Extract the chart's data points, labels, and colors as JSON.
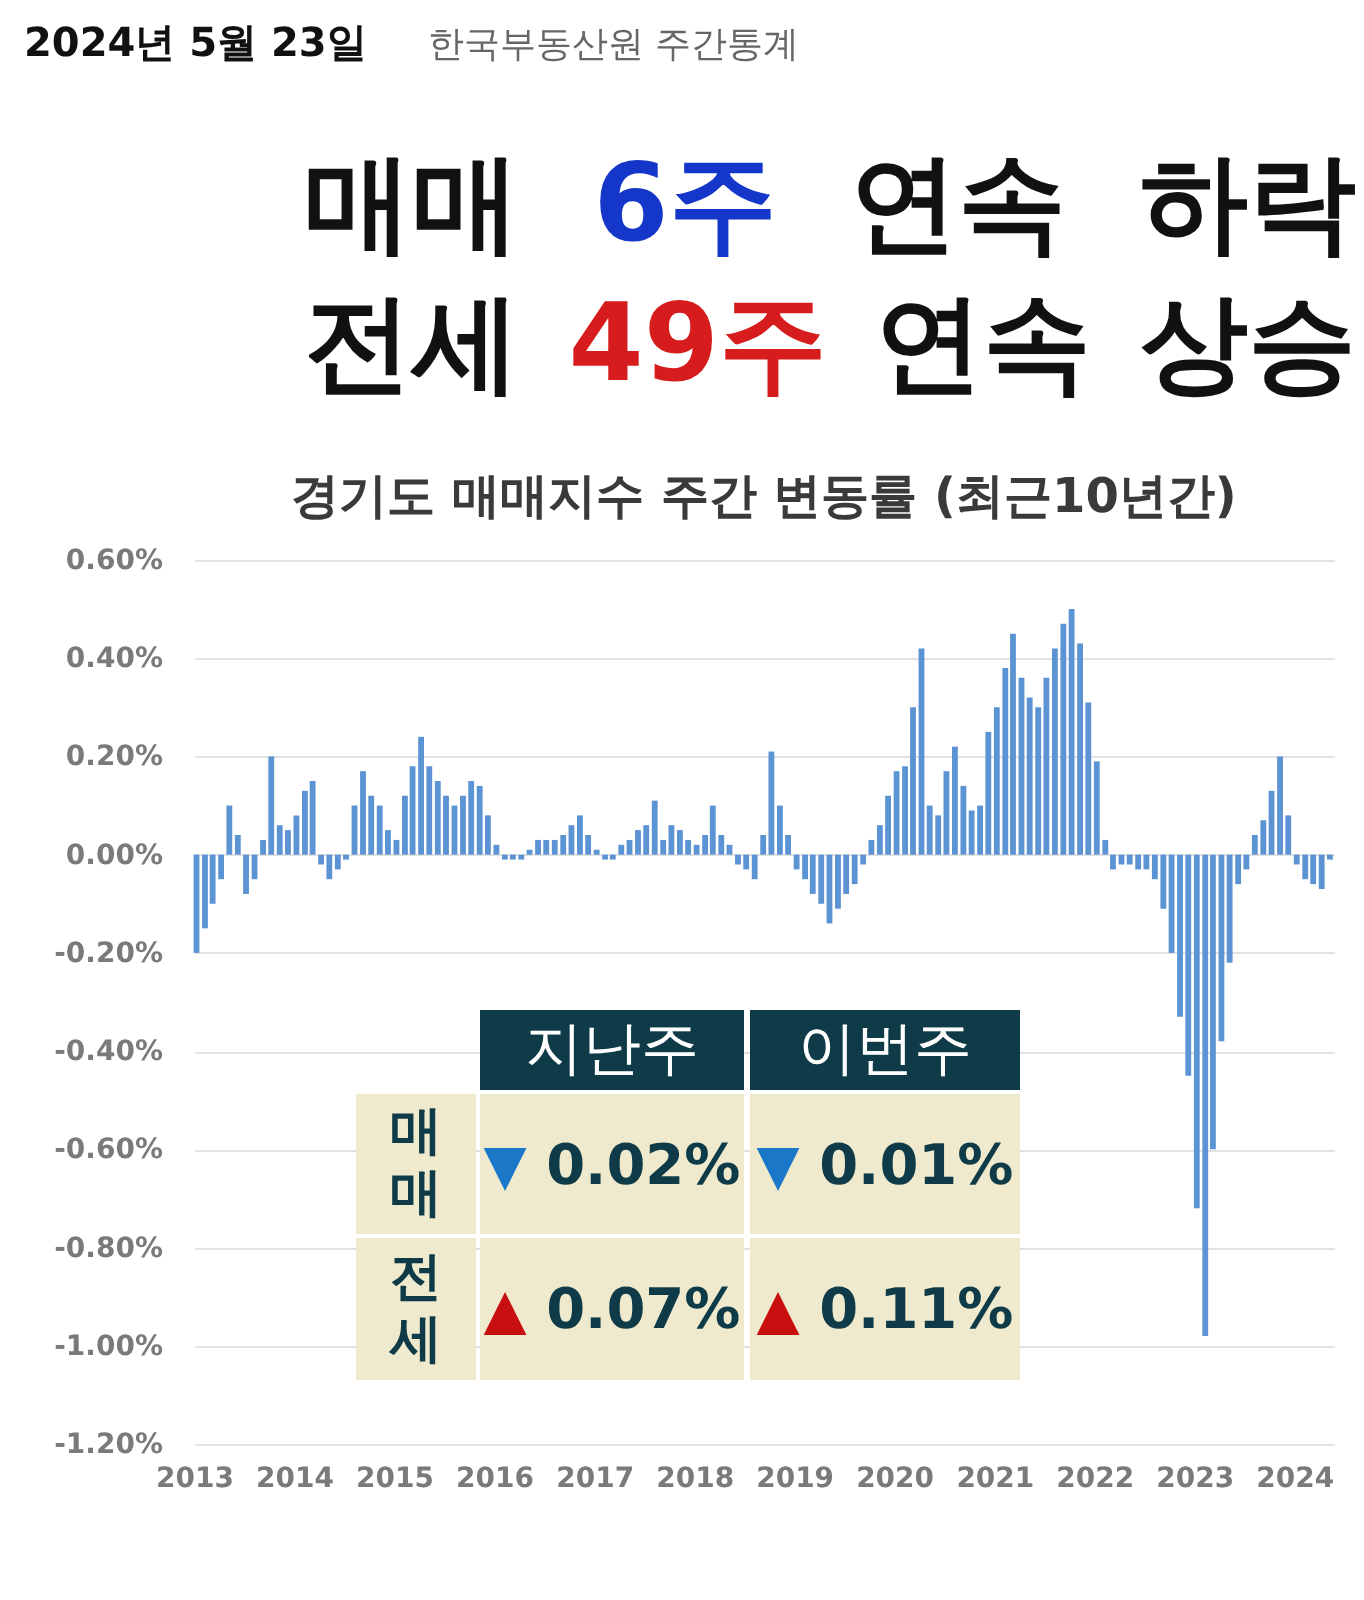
{
  "chart_data": {
    "type": "bar",
    "title": "경기도 매매지수 주간 변동률 (최근10년간)",
    "annotations": [
      "2024년 5월 23일",
      "한국부동산원 주간통계",
      "매매 6주 연속 하락",
      "전세 49주 연속 상승",
      "지난주",
      "이번주",
      "매매",
      "▼ 0.02%",
      "▼ 0.01%",
      "전세",
      "▲ 0.07%",
      "▲ 0.11%"
    ],
    "x": [
      "2013-01-10",
      "2013-02-10",
      "2013-03-10",
      "2013-04-10",
      "2013-05-10",
      "2013-06-10",
      "2013-07-10",
      "2013-08-10",
      "2013-09-10",
      "2013-10-10",
      "2013-11-10",
      "2013-12-10",
      "2014-01-10",
      "2014-02-10",
      "2014-03-10",
      "2014-04-10",
      "2014-05-10",
      "2014-06-10",
      "2014-07-10",
      "2014-08-10",
      "2014-09-10",
      "2014-10-10",
      "2014-11-10",
      "2014-12-10",
      "2015-01-10",
      "2015-02-10",
      "2015-03-10",
      "2015-04-10",
      "2015-05-10",
      "2015-06-10",
      "2015-07-10",
      "2015-08-10",
      "2015-09-10",
      "2015-10-10",
      "2015-11-10",
      "2015-12-10",
      "2016-01-10",
      "2016-02-10",
      "2016-03-10",
      "2016-04-10",
      "2016-05-10",
      "2016-06-10",
      "2016-07-10",
      "2016-08-10",
      "2016-09-10",
      "2016-10-10",
      "2016-11-10",
      "2016-12-10",
      "2017-01-10",
      "2017-02-10",
      "2017-03-10",
      "2017-04-10",
      "2017-05-10",
      "2017-06-10",
      "2017-07-10",
      "2017-08-10",
      "2017-09-10",
      "2017-10-10",
      "2017-11-10",
      "2017-12-10",
      "2018-01-10",
      "2018-02-10",
      "2018-03-10",
      "2018-04-10",
      "2018-05-10",
      "2018-06-10",
      "2018-07-10",
      "2018-08-10",
      "2018-09-10",
      "2018-10-10",
      "2018-11-10",
      "2018-12-10",
      "2019-01-10",
      "2019-02-10",
      "2019-03-10",
      "2019-04-10",
      "2019-05-10",
      "2019-06-10",
      "2019-07-10",
      "2019-08-10",
      "2019-09-10",
      "2019-10-10",
      "2019-11-10",
      "2019-12-10",
      "2020-01-10",
      "2020-02-10",
      "2020-03-10",
      "2020-04-10",
      "2020-05-10",
      "2020-06-10",
      "2020-07-10",
      "2020-08-10",
      "2020-09-10",
      "2020-10-10",
      "2020-11-10",
      "2020-12-10",
      "2021-01-10",
      "2021-02-10",
      "2021-03-10",
      "2021-04-10",
      "2021-05-10",
      "2021-06-10",
      "2021-07-10",
      "2021-08-10",
      "2021-09-10",
      "2021-10-10",
      "2021-11-10",
      "2021-12-10",
      "2022-01-10",
      "2022-02-10",
      "2022-03-10",
      "2022-04-10",
      "2022-05-10",
      "2022-06-10",
      "2022-07-10",
      "2022-08-10",
      "2022-09-10",
      "2022-10-10",
      "2022-11-10",
      "2022-12-10",
      "2023-01-10",
      "2023-02-10",
      "2023-03-10",
      "2023-04-10",
      "2023-05-10",
      "2023-06-10",
      "2023-07-10",
      "2023-08-10",
      "2023-09-10",
      "2023-10-10",
      "2023-11-10",
      "2023-12-10",
      "2024-01-10",
      "2024-02-10",
      "2024-03-10",
      "2024-04-10",
      "2024-05-10"
    ],
    "values": [
      -0.2,
      -0.15,
      -0.1,
      -0.05,
      0.1,
      0.04,
      -0.08,
      -0.05,
      0.03,
      0.2,
      0.06,
      0.05,
      0.08,
      0.13,
      0.15,
      -0.02,
      -0.05,
      -0.03,
      -0.01,
      0.1,
      0.17,
      0.12,
      0.1,
      0.05,
      0.03,
      0.12,
      0.18,
      0.24,
      0.18,
      0.15,
      0.12,
      0.1,
      0.12,
      0.15,
      0.14,
      0.08,
      0.02,
      -0.01,
      -0.01,
      -0.01,
      0.01,
      0.03,
      0.03,
      0.03,
      0.04,
      0.06,
      0.08,
      0.04,
      0.01,
      -0.01,
      -0.01,
      0.02,
      0.03,
      0.05,
      0.06,
      0.11,
      0.03,
      0.06,
      0.05,
      0.03,
      0.02,
      0.04,
      0.1,
      0.04,
      0.02,
      -0.02,
      -0.03,
      -0.05,
      0.04,
      0.21,
      0.1,
      0.04,
      -0.03,
      -0.05,
      -0.08,
      -0.1,
      -0.14,
      -0.11,
      -0.08,
      -0.06,
      -0.02,
      0.03,
      0.06,
      0.12,
      0.17,
      0.18,
      0.3,
      0.42,
      0.1,
      0.08,
      0.17,
      0.22,
      0.14,
      0.09,
      0.1,
      0.25,
      0.3,
      0.38,
      0.45,
      0.36,
      0.32,
      0.3,
      0.36,
      0.42,
      0.47,
      0.5,
      0.43,
      0.31,
      0.19,
      0.03,
      -0.03,
      -0.02,
      -0.02,
      -0.03,
      -0.03,
      -0.05,
      -0.11,
      -0.2,
      -0.33,
      -0.45,
      -0.72,
      -0.98,
      -0.6,
      -0.38,
      -0.22,
      -0.06,
      -0.03,
      0.04,
      0.07,
      0.13,
      0.2,
      0.08,
      -0.02,
      -0.05,
      -0.06,
      -0.07,
      -0.01
    ],
    "color": "#5b93d3",
    "xlim": [
      "2013-01-01",
      "2024-05-25"
    ],
    "xticks": [
      "2013",
      "2014",
      "2015",
      "2016",
      "2017",
      "2018",
      "2019",
      "2020",
      "2021",
      "2022",
      "2023",
      "2024"
    ],
    "ylim": [
      -1.2,
      0.6
    ],
    "yticks": [
      {
        "value": -1.2,
        "label": "-1.20%"
      },
      {
        "value": -1.0,
        "label": "-1.00%"
      },
      {
        "value": -0.8,
        "label": "-0.80%"
      },
      {
        "value": -0.6,
        "label": "-0.60%"
      },
      {
        "value": -0.4,
        "label": "-0.40%"
      },
      {
        "value": -0.2,
        "label": "-0.20%"
      },
      {
        "value": 0,
        "label": "0.00%"
      },
      {
        "value": 0.2,
        "label": "0.20%"
      },
      {
        "value": 0.4,
        "label": "0.40%"
      },
      {
        "value": 0.6,
        "label": "0.60%"
      }
    ],
    "grid": "y"
  }
}
